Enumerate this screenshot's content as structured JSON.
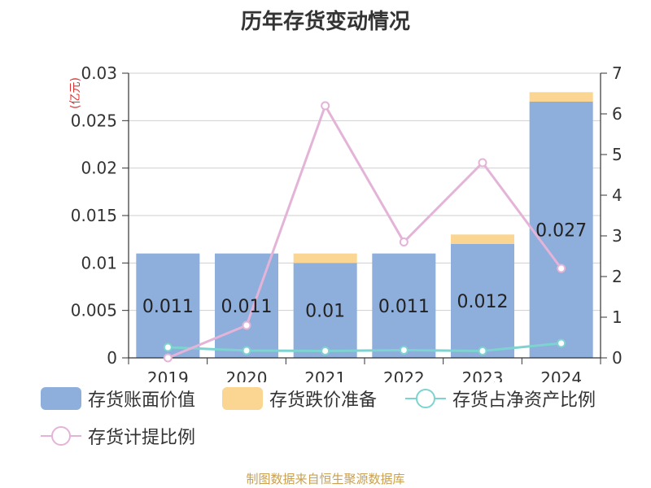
{
  "header": {
    "title": "历年存货变动情况"
  },
  "footer": {
    "source": "制图数据来自恒生聚源数据库"
  },
  "chart_data": {
    "type": "bar",
    "title": "历年存货变动情况",
    "y_unit_label": "(亿元)",
    "categories": [
      "2019",
      "2020",
      "2021",
      "2022",
      "2023",
      "2024"
    ],
    "left_axis": {
      "ylim": [
        0,
        0.03
      ],
      "ticks": [
        "0",
        "0.005",
        "0.01",
        "0.015",
        "0.02",
        "0.025",
        "0.03"
      ]
    },
    "right_axis": {
      "ylim": [
        0,
        7
      ],
      "ticks": [
        "0",
        "1",
        "2",
        "3",
        "4",
        "5",
        "6",
        "7"
      ]
    },
    "grid": true,
    "legend_position": "bottom",
    "series": [
      {
        "name": "存货账面价值",
        "kind": "bar",
        "stack": "inv",
        "axis": "left",
        "color": "#8eaedb",
        "values": [
          0.011,
          0.011,
          0.01,
          0.011,
          0.012,
          0.027
        ],
        "labels": [
          "0.011",
          "0.011",
          "0.01",
          "0.011",
          "0.012",
          "0.027"
        ]
      },
      {
        "name": "存货跌价准备",
        "kind": "bar",
        "stack": "inv",
        "axis": "left",
        "color": "#fbd592",
        "values": [
          0,
          0,
          0.001,
          0,
          0.001,
          0.001
        ]
      },
      {
        "name": "存货占净资产比例",
        "kind": "line",
        "axis": "right",
        "color": "#7dd3cf",
        "values": [
          0.26,
          0.18,
          0.17,
          0.19,
          0.17,
          0.36
        ]
      },
      {
        "name": "存货计提比例",
        "kind": "line",
        "axis": "right",
        "color": "#e4b4d8",
        "values": [
          0,
          0.8,
          6.2,
          2.85,
          4.8,
          2.2
        ]
      }
    ]
  }
}
